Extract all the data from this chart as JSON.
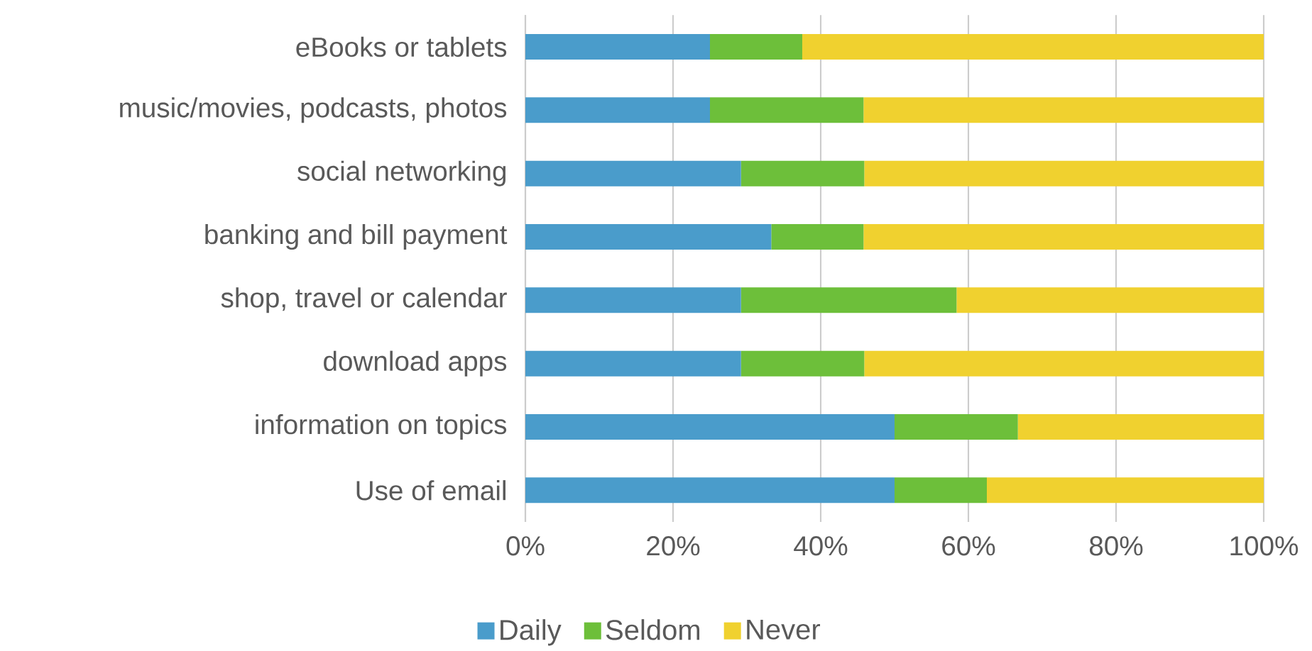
{
  "chart_data": {
    "type": "bar",
    "orientation": "horizontal",
    "stacked": true,
    "categories": [
      "eBooks or tablets",
      "music/movies, podcasts, photos",
      "social networking",
      "banking and bill payment",
      "shop, travel or calendar",
      "download apps",
      "information on topics",
      "Use of email"
    ],
    "series": [
      {
        "name": "Daily",
        "color": "#4a9ccb",
        "values": [
          25,
          25,
          29.2,
          33.3,
          29.2,
          29.2,
          50,
          50
        ]
      },
      {
        "name": "Seldom",
        "color": "#6dbf3a",
        "values": [
          12.5,
          20.8,
          16.7,
          12.5,
          29.2,
          16.7,
          16.7,
          12.5
        ]
      },
      {
        "name": "Never",
        "color": "#f0d12f",
        "values": [
          62.5,
          54.2,
          54.1,
          54.2,
          41.6,
          54.1,
          33.3,
          37.5
        ]
      }
    ],
    "xlim": [
      0,
      100
    ],
    "xticks": [
      {
        "value": 0,
        "label": "0%"
      },
      {
        "value": 20,
        "label": "20%"
      },
      {
        "value": 40,
        "label": "40%"
      },
      {
        "value": 60,
        "label": "60%"
      },
      {
        "value": 80,
        "label": "80%"
      },
      {
        "value": 100,
        "label": "100%"
      }
    ],
    "grid": "x",
    "legend": "bottom"
  }
}
